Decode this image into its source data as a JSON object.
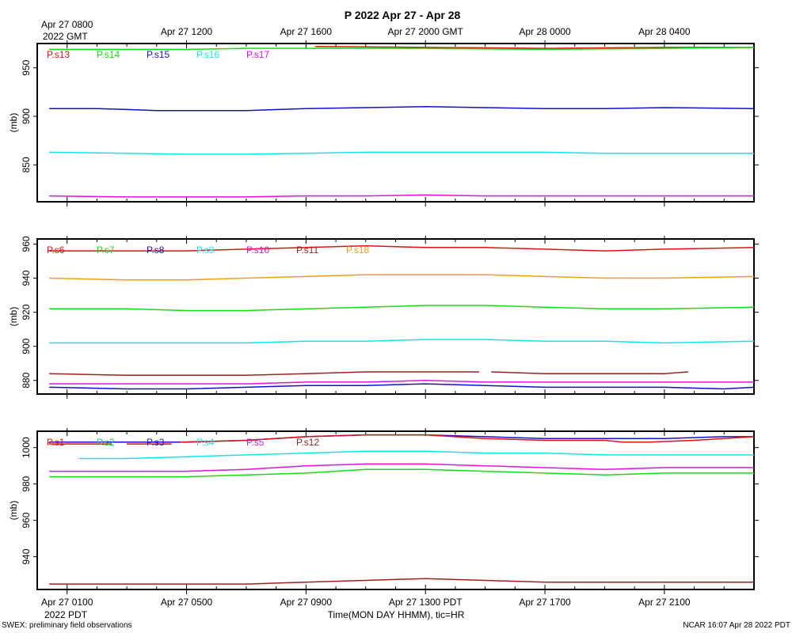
{
  "title": "P 2022 Apr 27 - Apr 28",
  "top_axis": {
    "ticks": [
      {
        "hour": 0,
        "label": "Apr 27 0800"
      },
      {
        "hour": 4,
        "label": "Apr 27 1200"
      },
      {
        "hour": 8,
        "label": "Apr 27 1600"
      },
      {
        "hour": 12,
        "label": "Apr 27 2000 GMT"
      },
      {
        "hour": 16,
        "label": "Apr 28 0000"
      },
      {
        "hour": 20,
        "label": "Apr 28 0400"
      }
    ],
    "tz_label": "2022 GMT"
  },
  "bottom_axis": {
    "ticks": [
      {
        "hour": 0,
        "label": "Apr 27 0100"
      },
      {
        "hour": 4,
        "label": "Apr 27 0500"
      },
      {
        "hour": 8,
        "label": "Apr 27 0900"
      },
      {
        "hour": 12,
        "label": "Apr 27 1300 PDT"
      },
      {
        "hour": 16,
        "label": "Apr 27 1700"
      },
      {
        "hour": 20,
        "label": "Apr 27 2100"
      }
    ],
    "tz_label": "2022 PDT",
    "xlabel": "Time(MON DAY HHMM), tic=HR"
  },
  "footer": {
    "left": "SWEX: preliminary field observations",
    "right": "NCAR 16:07 Apr 28 2022 PDT"
  },
  "colors": {
    "red": "#e01010",
    "green": "#10e010",
    "blue": "#1010d0",
    "cyan": "#10e8e8",
    "magenta": "#e010e0",
    "brown": "#a02020",
    "orange": "#f0a010",
    "navy": "#0a0a80"
  },
  "chart_data": [
    {
      "type": "line",
      "ylabel": "(mb)",
      "ylim": [
        812,
        975
      ],
      "yticks": [
        850,
        900,
        950
      ],
      "xlim_hours": [
        -1,
        23
      ],
      "legend": [
        "P.s13",
        "P.s14",
        "P.s15",
        "P.s16",
        "P.s17"
      ],
      "series": [
        {
          "name": "P.s13",
          "color": "red",
          "segments": [
            {
              "x": [
                8.3,
                12,
                16,
                20,
                23
              ],
              "y": [
                972,
                971,
                970,
                971,
                971
              ]
            }
          ]
        },
        {
          "name": "P.s14",
          "color": "green",
          "segments": [
            {
              "x": [
                -0.6,
                2,
                4,
                6,
                8,
                12,
                16,
                20,
                23
              ],
              "y": [
                969,
                969,
                969,
                970,
                970,
                970,
                969,
                970,
                971
              ]
            }
          ]
        },
        {
          "name": "P.s15",
          "color": "blue",
          "segments": [
            {
              "x": [
                -0.6,
                1,
                2,
                3,
                4,
                6,
                8,
                10,
                12,
                14,
                16,
                18,
                20,
                23
              ],
              "y": [
                908,
                908,
                907,
                906,
                906,
                906,
                908,
                909,
                910,
                909,
                908,
                908,
                909,
                908
              ]
            }
          ]
        },
        {
          "name": "P.s16",
          "color": "cyan",
          "segments": [
            {
              "x": [
                -0.6,
                2,
                4,
                6,
                8,
                10,
                12,
                14,
                16,
                18,
                20,
                23
              ],
              "y": [
                863,
                862,
                861,
                861,
                862,
                863,
                863,
                863,
                863,
                862,
                862,
                862
              ]
            }
          ]
        },
        {
          "name": "P.s17",
          "color": "magenta",
          "segments": [
            {
              "x": [
                -0.6,
                2,
                4,
                6,
                8,
                10,
                12,
                14,
                16,
                18,
                20,
                23
              ],
              "y": [
                818,
                817,
                817,
                817,
                818,
                818,
                819,
                818,
                818,
                818,
                818,
                818
              ]
            }
          ]
        }
      ]
    },
    {
      "type": "line",
      "ylabel": "(mb)",
      "ylim": [
        872,
        963
      ],
      "yticks": [
        880,
        900,
        920,
        940,
        960
      ],
      "xlim_hours": [
        -1,
        23
      ],
      "legend": [
        "P.s6",
        "P.s7",
        "P.s8",
        "P.s9",
        "P.s10",
        "P.s11",
        "P.s18"
      ],
      "series": [
        {
          "name": "P.s6",
          "color": "red",
          "segments": [
            {
              "x": [
                -0.6,
                2,
                4,
                6,
                8,
                10,
                12,
                14,
                16,
                18,
                20,
                23
              ],
              "y": [
                956,
                956,
                956,
                957,
                958,
                959,
                958,
                958,
                957,
                956,
                957,
                958
              ]
            }
          ]
        },
        {
          "name": "P.s18",
          "color": "orange",
          "segments": [
            {
              "x": [
                -0.6,
                2,
                4,
                6,
                8,
                10,
                12,
                14,
                16,
                18,
                20,
                23
              ],
              "y": [
                940,
                939,
                939,
                940,
                941,
                942,
                942,
                942,
                941,
                940,
                940,
                941
              ]
            }
          ]
        },
        {
          "name": "P.s7",
          "color": "green",
          "segments": [
            {
              "x": [
                -0.6,
                2,
                4,
                6,
                8,
                10,
                12,
                14,
                16,
                18,
                20,
                23
              ],
              "y": [
                922,
                922,
                921,
                921,
                922,
                923,
                924,
                924,
                923,
                922,
                922,
                923
              ]
            }
          ]
        },
        {
          "name": "P.s9",
          "color": "cyan",
          "segments": [
            {
              "x": [
                -0.6,
                2,
                4,
                6,
                8,
                10,
                12,
                14,
                16,
                18,
                20,
                23
              ],
              "y": [
                902,
                902,
                902,
                902,
                903,
                903,
                904,
                904,
                903,
                903,
                902,
                903
              ]
            }
          ]
        },
        {
          "name": "P.s11",
          "color": "brown",
          "segments": [
            {
              "x": [
                -0.6,
                2,
                4,
                6,
                8,
                10,
                12,
                13.8
              ],
              "y": [
                884,
                883,
                883,
                883,
                884,
                885,
                885,
                885
              ]
            },
            {
              "x": [
                14.2,
                16,
                18,
                20,
                20.8
              ],
              "y": [
                885,
                884,
                884,
                884,
                885
              ]
            }
          ]
        },
        {
          "name": "P.s10",
          "color": "magenta",
          "segments": [
            {
              "x": [
                -0.6,
                2,
                4,
                6,
                8,
                10,
                12,
                14,
                16,
                18,
                20,
                23
              ],
              "y": [
                878,
                878,
                878,
                878,
                879,
                879,
                880,
                879,
                879,
                879,
                879,
                879
              ]
            }
          ]
        },
        {
          "name": "P.s8",
          "color": "blue",
          "segments": [
            {
              "x": [
                -0.6,
                2,
                4,
                6,
                8,
                10,
                12,
                14,
                16,
                18,
                20,
                22,
                23
              ],
              "y": [
                876,
                875,
                875,
                876,
                877,
                877,
                878,
                877,
                876,
                876,
                876,
                875,
                876
              ]
            }
          ]
        }
      ]
    },
    {
      "type": "line",
      "ylabel": "(mb)",
      "ylim": [
        922,
        1009
      ],
      "yticks": [
        940,
        960,
        980,
        1000
      ],
      "xlim_hours": [
        -1,
        23
      ],
      "legend": [
        "P.s1",
        "P.s2",
        "P.s3",
        "P.s4",
        "P.s5",
        "P.s12"
      ],
      "series": [
        {
          "name": "P.s3",
          "color": "blue",
          "segments": [
            {
              "x": [
                -0.6,
                2,
                4,
                6,
                8,
                10,
                12,
                14,
                16,
                18,
                20,
                22,
                23
              ],
              "y": [
                1003,
                1003,
                1003,
                1004,
                1006,
                1007,
                1007,
                1006,
                1005,
                1005,
                1005,
                1006,
                1006
              ]
            }
          ]
        },
        {
          "name": "P.s1",
          "color": "red",
          "segments": [
            {
              "x": [
                -0.6,
                0.5,
                1.5
              ],
              "y": [
                1002,
                1002,
                1002
              ]
            },
            {
              "x": [
                2.0,
                3.5
              ],
              "y": [
                1002,
                1002
              ]
            },
            {
              "x": [
                3.8,
                6,
                8,
                10,
                12,
                14,
                16,
                18,
                18.6,
                19.5,
                21,
                23
              ],
              "y": [
                1003,
                1004,
                1006,
                1007,
                1007,
                1005,
                1004,
                1004,
                1003,
                1003,
                1004,
                1006
              ]
            }
          ]
        },
        {
          "name": "P.s4",
          "color": "cyan",
          "segments": [
            {
              "x": [
                0.4,
                2,
                4,
                6,
                8,
                10,
                12,
                14,
                16,
                18,
                20,
                23
              ],
              "y": [
                994,
                994,
                995,
                996,
                997,
                998,
                998,
                997,
                997,
                996,
                996,
                996
              ]
            }
          ]
        },
        {
          "name": "P.s5",
          "color": "magenta",
          "segments": [
            {
              "x": [
                -0.6,
                2,
                4,
                6,
                8,
                10,
                12,
                14,
                16,
                18,
                20,
                23
              ],
              "y": [
                987,
                987,
                987,
                988,
                990,
                991,
                991,
                990,
                989,
                988,
                989,
                989
              ]
            }
          ]
        },
        {
          "name": "P.s2",
          "color": "green",
          "segments": [
            {
              "x": [
                -0.6,
                2,
                4,
                6,
                8,
                10,
                12,
                14,
                16,
                18,
                20,
                23
              ],
              "y": [
                984,
                984,
                984,
                985,
                986,
                988,
                988,
                987,
                986,
                985,
                986,
                986
              ]
            }
          ]
        },
        {
          "name": "P.s12",
          "color": "brown",
          "segments": [
            {
              "x": [
                -0.6,
                2,
                4,
                6,
                8,
                10,
                12,
                14,
                16,
                18,
                20,
                23
              ],
              "y": [
                925,
                925,
                925,
                925,
                926,
                927,
                928,
                927,
                926,
                926,
                926,
                926
              ]
            }
          ]
        }
      ]
    }
  ]
}
